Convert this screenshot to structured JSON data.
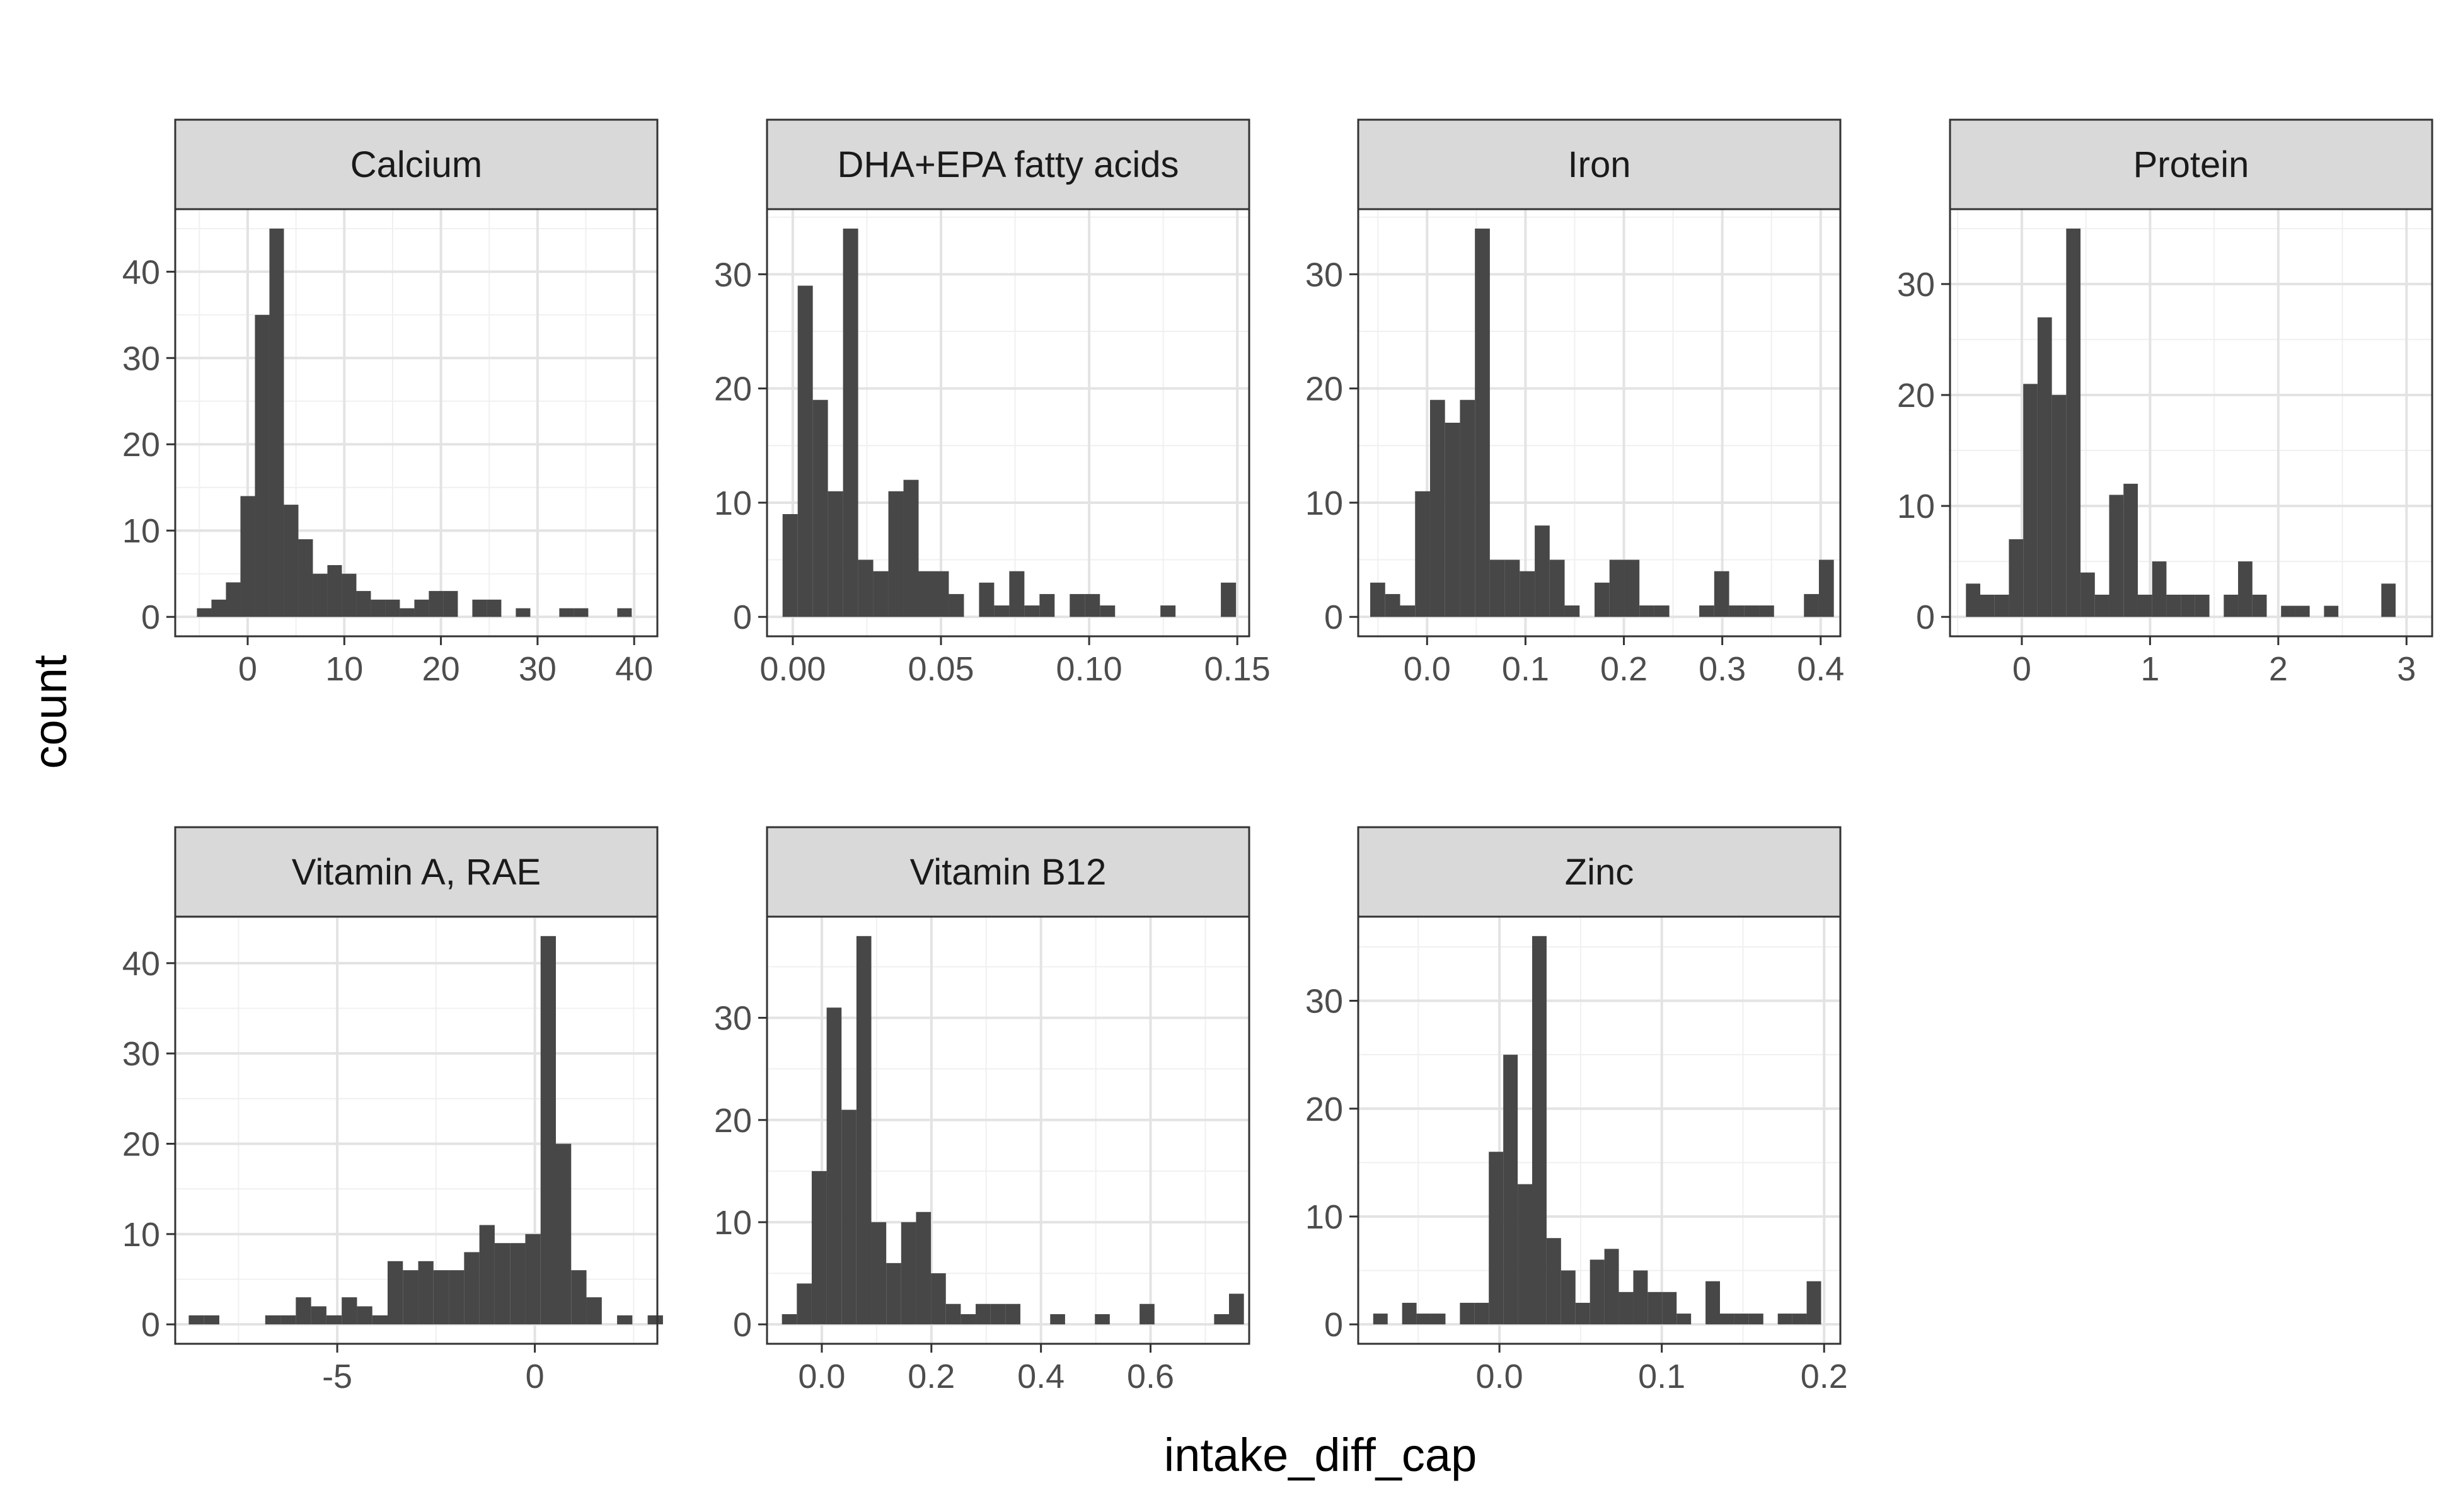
{
  "figure": {
    "xlabel": "intake_diff_cap",
    "ylabel": "count"
  },
  "colors": {
    "bar": "#474747",
    "panel_border": "#333333",
    "strip_fill": "#d9d9d9",
    "grid_major": "#e3e3e3",
    "grid_minor": "#f0f0f0"
  },
  "chart_data": [
    {
      "type": "bar",
      "title": "Calcium",
      "xlabel": "intake_diff_cap",
      "ylabel": "count",
      "xlim": [
        -7.5,
        42.4
      ],
      "ylim": [
        -2.25,
        47.25
      ],
      "grid": true,
      "xticks": [
        0,
        10,
        20,
        30,
        40
      ],
      "xtick_labels": [
        "0",
        "10",
        "20",
        "30",
        "40"
      ],
      "yticks": [
        0,
        10,
        20,
        30,
        40
      ],
      "ytick_labels": [
        "0",
        "10",
        "20",
        "30",
        "40"
      ],
      "bin_width": 1.5,
      "x": [
        -4.5,
        -3,
        -1.5,
        0,
        1.5,
        3,
        4.5,
        6,
        7.5,
        9,
        10.5,
        12,
        13.5,
        15,
        16.5,
        18,
        19.5,
        21,
        22.5,
        24,
        25.5,
        27,
        28.5,
        30,
        31.5,
        33,
        34.5,
        36,
        37.5,
        39,
        40.5
      ],
      "values": [
        1,
        2,
        4,
        14,
        35,
        45,
        13,
        9,
        5,
        6,
        5,
        3,
        2,
        2,
        1,
        2,
        3,
        3,
        0,
        2,
        2,
        0,
        1,
        0,
        0,
        1,
        1,
        0,
        0,
        1,
        0
      ]
    },
    {
      "type": "bar",
      "title": "DHA+EPA fatty acids",
      "xlabel": "intake_diff_cap",
      "ylabel": "count",
      "xlim": [
        -0.0087,
        0.154
      ],
      "ylim": [
        -1.7,
        35.7
      ],
      "grid": true,
      "xticks": [
        0,
        0.05,
        0.1,
        0.15
      ],
      "xtick_labels": [
        "0.00",
        "0.05",
        "0.10",
        "0.15"
      ],
      "yticks": [
        0,
        10,
        20,
        30
      ],
      "ytick_labels": [
        "0",
        "10",
        "20",
        "30"
      ],
      "bin_width": 0.0051,
      "x": [
        -0.0009,
        0.0042,
        0.0093,
        0.0144,
        0.0195,
        0.0246,
        0.0297,
        0.0348,
        0.0399,
        0.045,
        0.0501,
        0.0552,
        0.0603,
        0.0654,
        0.0705,
        0.0756,
        0.0807,
        0.0858,
        0.0909,
        0.096,
        0.1011,
        0.1062,
        0.1113,
        0.1164,
        0.1215,
        0.1266,
        0.1317,
        0.1368,
        0.1419,
        0.147,
        0.1521
      ],
      "values": [
        9,
        29,
        19,
        11,
        34,
        5,
        4,
        11,
        12,
        4,
        4,
        2,
        0,
        3,
        1,
        4,
        1,
        2,
        0,
        2,
        2,
        1,
        0,
        0,
        0,
        1,
        0,
        0,
        0,
        3,
        0
      ]
    },
    {
      "type": "bar",
      "title": "Iron",
      "xlabel": "intake_diff_cap",
      "ylabel": "count",
      "xlim": [
        -0.07,
        0.42
      ],
      "ylim": [
        -1.7,
        35.7
      ],
      "grid": true,
      "xticks": [
        0,
        0.1,
        0.2,
        0.3,
        0.4
      ],
      "xtick_labels": [
        "0.0",
        "0.1",
        "0.2",
        "0.3",
        "0.4"
      ],
      "yticks": [
        0,
        10,
        20,
        30
      ],
      "ytick_labels": [
        "0",
        "10",
        "20",
        "30"
      ],
      "bin_width": 0.0152,
      "x": [
        -0.0502,
        -0.035,
        -0.0198,
        -0.0046,
        0.0106,
        0.0258,
        0.041,
        0.0562,
        0.0714,
        0.0866,
        0.1018,
        0.117,
        0.1322,
        0.1474,
        0.1626,
        0.1778,
        0.193,
        0.2082,
        0.2234,
        0.2386,
        0.2538,
        0.269,
        0.2842,
        0.2994,
        0.3146,
        0.3298,
        0.345,
        0.3602,
        0.3754,
        0.3906,
        0.4058
      ],
      "values": [
        3,
        2,
        1,
        11,
        19,
        17,
        19,
        34,
        5,
        5,
        4,
        8,
        5,
        1,
        0,
        3,
        5,
        5,
        1,
        1,
        0,
        0,
        1,
        4,
        1,
        1,
        1,
        0,
        0,
        2,
        5
      ]
    },
    {
      "type": "bar",
      "title": "Protein",
      "xlabel": "intake_diff_cap",
      "ylabel": "count",
      "xlim": [
        -0.56,
        3.2
      ],
      "ylim": [
        -1.75,
        36.75
      ],
      "grid": true,
      "xticks": [
        0,
        1,
        2,
        3
      ],
      "xtick_labels": [
        "0",
        "1",
        "2",
        "3"
      ],
      "yticks": [
        0,
        10,
        20,
        30
      ],
      "ytick_labels": [
        "0",
        "10",
        "20",
        "30"
      ],
      "bin_width": 0.1117,
      "x": [
        -0.38,
        -0.2683,
        -0.1566,
        -0.0449,
        0.0668,
        0.1785,
        0.2902,
        0.4019,
        0.5136,
        0.6253,
        0.737,
        0.8487,
        0.9604,
        1.0721,
        1.1838,
        1.2955,
        1.4072,
        1.5189,
        1.6306,
        1.7423,
        1.854,
        1.9657,
        2.0774,
        2.1891,
        2.3008,
        2.4125,
        2.5242,
        2.6359,
        2.7476,
        2.8593,
        2.971
      ],
      "values": [
        3,
        2,
        2,
        7,
        21,
        27,
        20,
        35,
        4,
        2,
        11,
        12,
        2,
        5,
        2,
        2,
        2,
        0,
        2,
        5,
        2,
        0,
        1,
        1,
        0,
        1,
        0,
        0,
        0,
        3,
        0
      ]
    },
    {
      "type": "bar",
      "title": "Vitamin A, RAE",
      "xlabel": "intake_diff_cap",
      "ylabel": "count",
      "xlim": [
        -9.1,
        3.1
      ],
      "ylim": [
        -2.15,
        45.15
      ],
      "grid": true,
      "xticks": [
        -5,
        0
      ],
      "xtick_labels": [
        "-5",
        "0"
      ],
      "yticks": [
        0,
        10,
        20,
        30,
        40
      ],
      "ytick_labels": [
        "0",
        "10",
        "20",
        "30",
        "40"
      ],
      "bin_width": 0.3871,
      "x": [
        -8.5645,
        -8.1774,
        -7.7903,
        -7.4032,
        -7.0161,
        -6.629,
        -6.2419,
        -5.8548,
        -5.4677,
        -5.0806,
        -4.6935,
        -4.3064,
        -3.9193,
        -3.5322,
        -3.1451,
        -2.758,
        -2.3709,
        -1.9838,
        -1.5967,
        -1.2096,
        -0.8225,
        -0.4354,
        -0.0483,
        0.3388,
        0.7259,
        1.113,
        1.5001,
        1.8872,
        2.2743,
        2.6614,
        3.0485
      ],
      "values": [
        1,
        1,
        0,
        0,
        0,
        1,
        1,
        3,
        2,
        1,
        3,
        2,
        1,
        7,
        6,
        7,
        6,
        6,
        8,
        11,
        9,
        9,
        10,
        43,
        20,
        6,
        3,
        0,
        1,
        0,
        1
      ]
    },
    {
      "type": "bar",
      "title": "Vitamin B12",
      "xlabel": "intake_diff_cap",
      "ylabel": "count",
      "xlim": [
        -0.1,
        0.78
      ],
      "ylim": [
        -1.9,
        39.9
      ],
      "grid": true,
      "xticks": [
        0,
        0.2,
        0.4,
        0.6
      ],
      "xtick_labels": [
        "0.0",
        "0.2",
        "0.4",
        "0.6"
      ],
      "yticks": [
        0,
        10,
        20,
        30
      ],
      "ytick_labels": [
        "0",
        "10",
        "20",
        "30"
      ],
      "bin_width": 0.0272,
      "x": [
        -0.0592,
        -0.032,
        -0.0048,
        0.0224,
        0.0496,
        0.0768,
        0.104,
        0.1312,
        0.1584,
        0.1856,
        0.2128,
        0.24,
        0.2672,
        0.2944,
        0.3216,
        0.3488,
        0.376,
        0.4032,
        0.4304,
        0.4576,
        0.4848,
        0.512,
        0.5392,
        0.5664,
        0.5936,
        0.6208,
        0.648,
        0.6752,
        0.7024,
        0.7296,
        0.7568
      ],
      "values": [
        1,
        4,
        15,
        31,
        21,
        38,
        10,
        6,
        10,
        11,
        5,
        2,
        1,
        2,
        2,
        2,
        0,
        0,
        1,
        0,
        0,
        1,
        0,
        0,
        2,
        0,
        0,
        0,
        0,
        1,
        3
      ]
    },
    {
      "type": "bar",
      "title": "Zinc",
      "xlabel": "intake_diff_cap",
      "ylabel": "count",
      "xlim": [
        -0.087,
        0.21
      ],
      "ylim": [
        -1.8,
        37.8
      ],
      "grid": true,
      "xticks": [
        0,
        0.1,
        0.2
      ],
      "xtick_labels": [
        "0.0",
        "0.1",
        "0.2"
      ],
      "yticks": [
        0,
        10,
        20,
        30
      ],
      "ytick_labels": [
        "0",
        "10",
        "20",
        "30"
      ],
      "bin_width": 0.0089,
      "x": [
        -0.0733,
        -0.0644,
        -0.0555,
        -0.0466,
        -0.0377,
        -0.0288,
        -0.0199,
        -0.011,
        -0.0021,
        0.0068,
        0.0157,
        0.0246,
        0.0335,
        0.0424,
        0.0513,
        0.0602,
        0.0691,
        0.078,
        0.0869,
        0.0958,
        0.1047,
        0.1136,
        0.1225,
        0.1314,
        0.1403,
        0.1492,
        0.1581,
        0.167,
        0.1759,
        0.1848,
        0.1937
      ],
      "values": [
        1,
        0,
        2,
        1,
        1,
        0,
        2,
        2,
        16,
        25,
        13,
        36,
        8,
        5,
        2,
        6,
        7,
        3,
        5,
        3,
        3,
        1,
        0,
        4,
        1,
        1,
        1,
        0,
        1,
        1,
        4
      ]
    }
  ]
}
